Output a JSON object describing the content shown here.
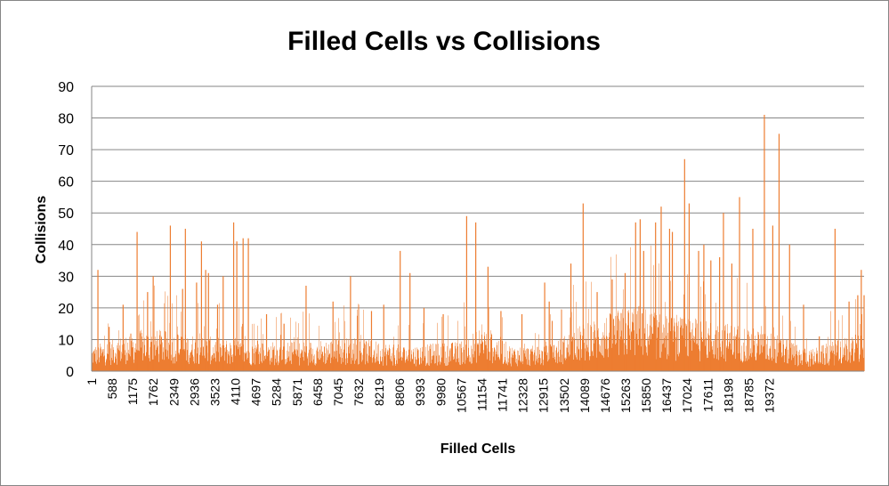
{
  "chart_data": {
    "type": "bar",
    "title": "Filled Cells vs Collisions",
    "xlabel": "Filled Cells",
    "ylabel": "Collisions",
    "ylim": [
      0,
      90
    ],
    "yticks": [
      0,
      10,
      20,
      30,
      40,
      50,
      60,
      70,
      80,
      90
    ],
    "xlim": [
      1,
      20000
    ],
    "xticks": [
      "1",
      "588",
      "1175",
      "1762",
      "2349",
      "2936",
      "3523",
      "4110",
      "4697",
      "5284",
      "5871",
      "6458",
      "7045",
      "7632",
      "8219",
      "8806",
      "9393",
      "9980",
      "10567",
      "11154",
      "11741",
      "12328",
      "12915",
      "13502",
      "14089",
      "14676",
      "15263",
      "15850",
      "16437",
      "17024",
      "17611",
      "18198",
      "18785",
      "19372"
    ],
    "grid": true,
    "legend": "none",
    "bar_color": "#ED7D31",
    "series": [
      {
        "name": "",
        "peaks": [
          {
            "x": 180,
            "y": 32
          },
          {
            "x": 500,
            "y": 14
          },
          {
            "x": 900,
            "y": 21
          },
          {
            "x": 1300,
            "y": 44
          },
          {
            "x": 1600,
            "y": 25
          },
          {
            "x": 1760,
            "y": 30
          },
          {
            "x": 2250,
            "y": 46
          },
          {
            "x": 2600,
            "y": 26
          },
          {
            "x": 2680,
            "y": 45
          },
          {
            "x": 3000,
            "y": 28
          },
          {
            "x": 3140,
            "y": 41
          },
          {
            "x": 3260,
            "y": 32
          },
          {
            "x": 3340,
            "y": 31
          },
          {
            "x": 3600,
            "y": 21
          },
          {
            "x": 3760,
            "y": 30
          },
          {
            "x": 4060,
            "y": 47
          },
          {
            "x": 4150,
            "y": 41
          },
          {
            "x": 4330,
            "y": 42
          },
          {
            "x": 4480,
            "y": 42
          },
          {
            "x": 5000,
            "y": 18
          },
          {
            "x": 5500,
            "y": 15
          },
          {
            "x": 6130,
            "y": 27
          },
          {
            "x": 6900,
            "y": 22
          },
          {
            "x": 7400,
            "y": 30
          },
          {
            "x": 8000,
            "y": 19
          },
          {
            "x": 8350,
            "y": 21
          },
          {
            "x": 8820,
            "y": 38
          },
          {
            "x": 9100,
            "y": 31
          },
          {
            "x": 9500,
            "y": 20
          },
          {
            "x": 10050,
            "y": 18
          },
          {
            "x": 10720,
            "y": 49
          },
          {
            "x": 10980,
            "y": 47
          },
          {
            "x": 11330,
            "y": 33
          },
          {
            "x": 11700,
            "y": 19
          },
          {
            "x": 12300,
            "y": 18
          },
          {
            "x": 12950,
            "y": 28
          },
          {
            "x": 13080,
            "y": 22
          },
          {
            "x": 13700,
            "y": 34
          },
          {
            "x": 14050,
            "y": 53
          },
          {
            "x": 14450,
            "y": 25
          },
          {
            "x": 14880,
            "y": 29
          },
          {
            "x": 15250,
            "y": 31
          },
          {
            "x": 15550,
            "y": 47
          },
          {
            "x": 15680,
            "y": 48
          },
          {
            "x": 15780,
            "y": 38
          },
          {
            "x": 16120,
            "y": 47
          },
          {
            "x": 16280,
            "y": 52
          },
          {
            "x": 16520,
            "y": 45
          },
          {
            "x": 16600,
            "y": 44
          },
          {
            "x": 16950,
            "y": 67
          },
          {
            "x": 17080,
            "y": 53
          },
          {
            "x": 17350,
            "y": 38
          },
          {
            "x": 17500,
            "y": 40
          },
          {
            "x": 17700,
            "y": 35
          },
          {
            "x": 17950,
            "y": 36
          },
          {
            "x": 18060,
            "y": 50
          },
          {
            "x": 18300,
            "y": 34
          },
          {
            "x": 18520,
            "y": 55
          },
          {
            "x": 18900,
            "y": 45
          },
          {
            "x": 19230,
            "y": 81
          },
          {
            "x": 19470,
            "y": 46
          },
          {
            "x": 19650,
            "y": 75
          },
          {
            "x": 19950,
            "y": 40
          },
          {
            "x": 20350,
            "y": 21
          },
          {
            "x": 20800,
            "y": 11
          },
          {
            "x": 21250,
            "y": 45
          },
          {
            "x": 21650,
            "y": 22
          },
          {
            "x": 21900,
            "y": 24
          },
          {
            "x": 22000,
            "y": 32
          },
          {
            "x": 22080,
            "y": 24
          }
        ],
        "baseline_profile": [
          {
            "x": 1,
            "y": 6
          },
          {
            "x": 1500,
            "y": 10
          },
          {
            "x": 2500,
            "y": 9
          },
          {
            "x": 4500,
            "y": 7
          },
          {
            "x": 6000,
            "y": 7
          },
          {
            "x": 7500,
            "y": 8
          },
          {
            "x": 9000,
            "y": 6
          },
          {
            "x": 10500,
            "y": 7
          },
          {
            "x": 11200,
            "y": 11
          },
          {
            "x": 12000,
            "y": 6
          },
          {
            "x": 13000,
            "y": 6
          },
          {
            "x": 14000,
            "y": 11
          },
          {
            "x": 15500,
            "y": 16
          },
          {
            "x": 16500,
            "y": 13
          },
          {
            "x": 17500,
            "y": 12
          },
          {
            "x": 18500,
            "y": 11
          },
          {
            "x": 19500,
            "y": 9
          },
          {
            "x": 20500,
            "y": 5
          },
          {
            "x": 21500,
            "y": 8
          },
          {
            "x": 22080,
            "y": 9
          }
        ]
      }
    ]
  }
}
